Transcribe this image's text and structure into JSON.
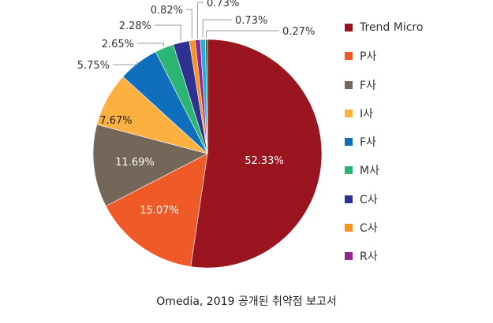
{
  "chart_data": {
    "type": "pie",
    "start_angle": "top",
    "direction": "clockwise",
    "slices": [
      {
        "label": "Trend Micro",
        "value": 52.33,
        "text": "52.33%",
        "color": "#9b1520"
      },
      {
        "label": "P사",
        "value": 15.07,
        "text": "15.07%",
        "color": "#f05a28"
      },
      {
        "label": "F사",
        "value": 11.69,
        "text": "11.69%",
        "color": "#75665a"
      },
      {
        "label": "I사",
        "value": 7.67,
        "text": "7.67%",
        "color": "#fbb040"
      },
      {
        "label": "F사",
        "value": 5.75,
        "text": "5.75%",
        "color": "#0f6fbd"
      },
      {
        "label": "M사",
        "value": 2.65,
        "text": "2.65%",
        "color": "#2bb673"
      },
      {
        "label": "C사",
        "value": 2.28,
        "text": "2.28%",
        "color": "#2e3192"
      },
      {
        "label": "C사",
        "value": 0.82,
        "text": "0.82%",
        "color": "#f7941d"
      },
      {
        "label": "R사",
        "value": 0.73,
        "text": "0.73%",
        "color": "#92278f"
      },
      {
        "label": "",
        "value": 0.73,
        "text": "0.73%",
        "color": "#29abe2"
      },
      {
        "label": "",
        "value": 0.27,
        "text": "0.27%",
        "color": "#00733a"
      }
    ],
    "legend": [
      "Trend Micro",
      "P사",
      "F사",
      "I사",
      "F사",
      "M사",
      "C사",
      "C사",
      "R사"
    ],
    "legend_placement": "right"
  },
  "caption": "Omedia, 2019 공개된 취약점 보고서"
}
